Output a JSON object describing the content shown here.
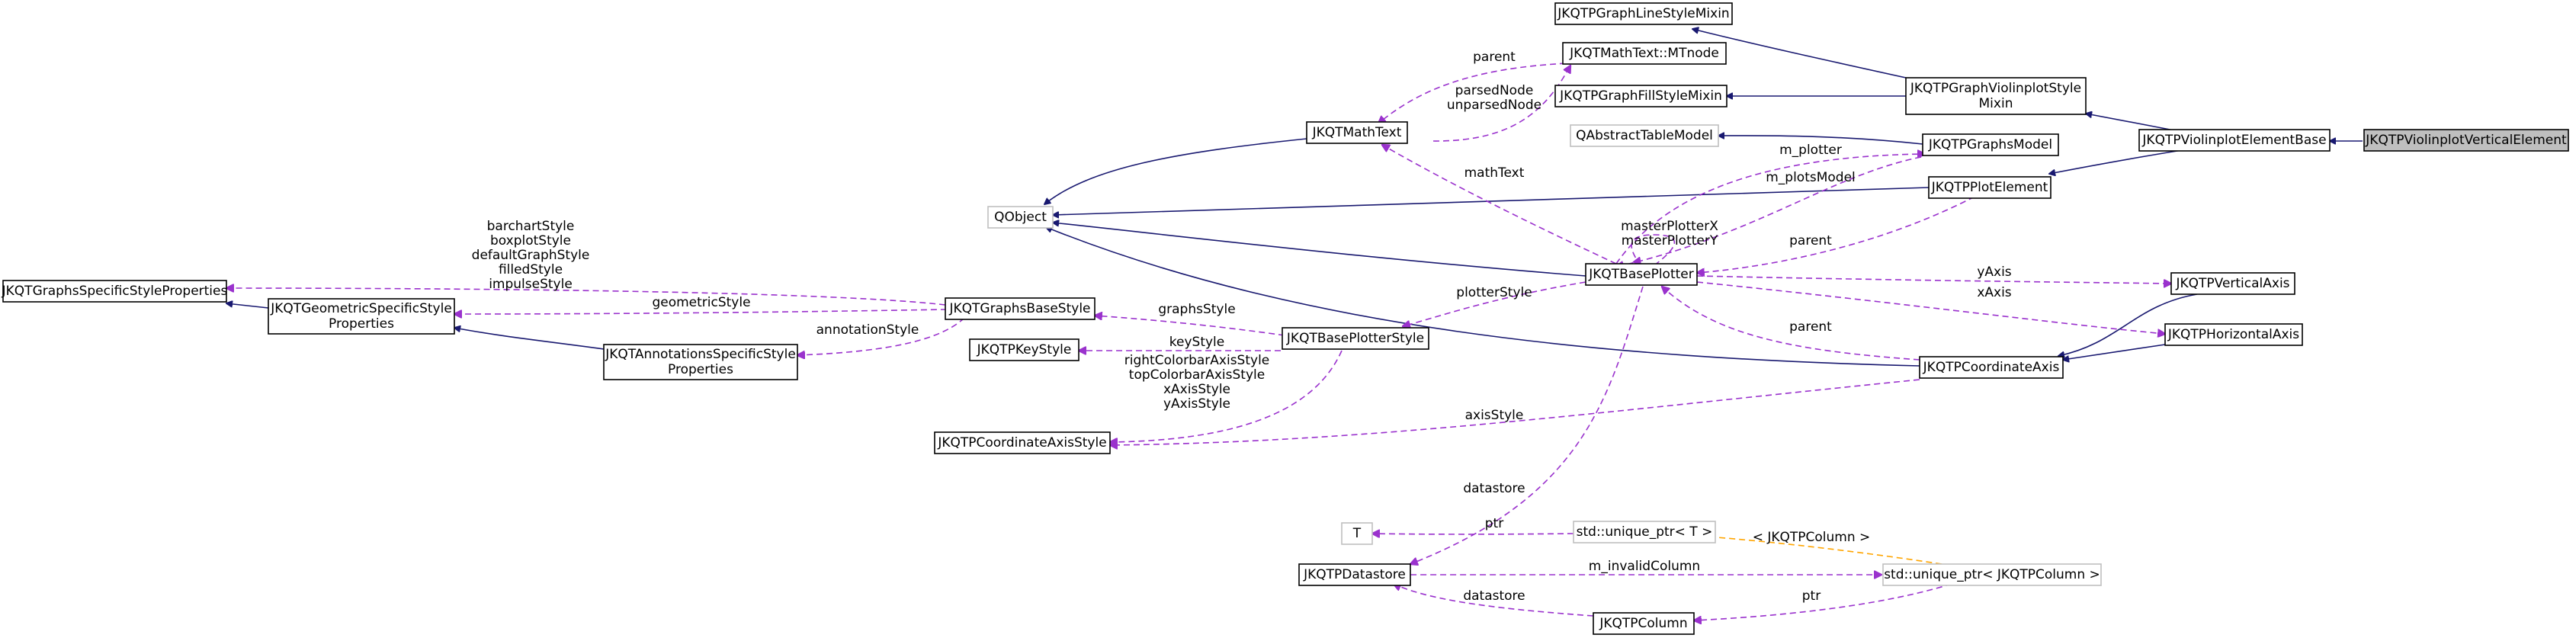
{
  "diagram": {
    "nodes": [
      {
        "id": "violin_vertical",
        "lines": [
          "JKQTPViolinplotVerticalElement"
        ],
        "style": "active"
      },
      {
        "id": "violin_base",
        "lines": [
          "JKQTPViolinplotElementBase"
        ],
        "style": "normal"
      },
      {
        "id": "violin_style_mixin",
        "lines": [
          "JKQTPGraphViolinplotStyle",
          "Mixin"
        ],
        "style": "normal"
      },
      {
        "id": "line_style_mixin",
        "lines": [
          "JKQTPGraphLineStyleMixin"
        ],
        "style": "normal"
      },
      {
        "id": "fill_style_mixin",
        "lines": [
          "JKQTPGraphFillStyleMixin"
        ],
        "style": "normal"
      },
      {
        "id": "mtnode",
        "lines": [
          "JKQTMathText::MTnode"
        ],
        "style": "normal"
      },
      {
        "id": "mathtext",
        "lines": [
          "JKQTMathText"
        ],
        "style": "normal"
      },
      {
        "id": "qabstracttablemodel",
        "lines": [
          "QAbstractTableModel"
        ],
        "style": "gray"
      },
      {
        "id": "graphsmodel",
        "lines": [
          "JKQTPGraphsModel"
        ],
        "style": "normal"
      },
      {
        "id": "plotelement",
        "lines": [
          "JKQTPPlotElement"
        ],
        "style": "normal"
      },
      {
        "id": "qobject",
        "lines": [
          "QObject"
        ],
        "style": "gray"
      },
      {
        "id": "baseplotter",
        "lines": [
          "JKQTBasePlotter"
        ],
        "style": "normal"
      },
      {
        "id": "verticalaxis",
        "lines": [
          "JKQTPVerticalAxis"
        ],
        "style": "normal"
      },
      {
        "id": "horizontalaxis",
        "lines": [
          "JKQTPHorizontalAxis"
        ],
        "style": "normal"
      },
      {
        "id": "coordinateaxis",
        "lines": [
          "JKQTPCoordinateAxis"
        ],
        "style": "normal"
      },
      {
        "id": "specificstyleprops",
        "lines": [
          "JKQTGraphsSpecificStyleProperties"
        ],
        "style": "normal"
      },
      {
        "id": "geometricstyleprops",
        "lines": [
          "JKQTGeometricSpecificStyle",
          "Properties"
        ],
        "style": "normal"
      },
      {
        "id": "annotationsstyleprops",
        "lines": [
          "JKQTAnnotationsSpecificStyle",
          "Properties"
        ],
        "style": "normal"
      },
      {
        "id": "graphsbasestyle",
        "lines": [
          "JKQTGraphsBaseStyle"
        ],
        "style": "normal"
      },
      {
        "id": "keystyle",
        "lines": [
          "JKQTPKeyStyle"
        ],
        "style": "normal"
      },
      {
        "id": "baseplotterstyle",
        "lines": [
          "JKQTBasePlotterStyle"
        ],
        "style": "normal"
      },
      {
        "id": "coordinateaxisstyle",
        "lines": [
          "JKQTPCoordinateAxisStyle"
        ],
        "style": "normal"
      },
      {
        "id": "t_param",
        "lines": [
          "T"
        ],
        "style": "gray"
      },
      {
        "id": "unique_ptr_t",
        "lines": [
          "std::unique_ptr< T >"
        ],
        "style": "gray"
      },
      {
        "id": "datastore",
        "lines": [
          "JKQTPDatastore"
        ],
        "style": "normal"
      },
      {
        "id": "unique_ptr_column",
        "lines": [
          "std::unique_ptr< JKQTPColumn >"
        ],
        "style": "gray"
      },
      {
        "id": "column",
        "lines": [
          "JKQTPColumn"
        ],
        "style": "normal"
      }
    ],
    "edge_labels": {
      "parent_mtnode": "parent",
      "parsednode": [
        "parsedNode",
        "unparsedNode"
      ],
      "mathtext": "mathText",
      "m_plotter": "m_plotter",
      "m_plotsmodel": "m_plotsModel",
      "masterplotter": [
        "masterPlotterX",
        "masterPlotterY"
      ],
      "parent_plotelement": "parent",
      "yaxis": "yAxis",
      "xaxis": "xAxis",
      "parent_axis": "parent",
      "stylelist": [
        "barchartStyle",
        "boxplotStyle",
        "defaultGraphStyle",
        "filledStyle",
        "impulseStyle"
      ],
      "geometricstyle": "geometricStyle",
      "annotationstyle": "annotationStyle",
      "graphsstyle": "graphsStyle",
      "plotterstyle": "plotterStyle",
      "keystyle": "keyStyle",
      "axisstylelist": [
        "rightColorbarAxisStyle",
        "topColorbarAxisStyle",
        "xAxisStyle",
        "yAxisStyle"
      ],
      "axisstyle": "axisStyle",
      "datastore": "datastore",
      "ptr_t": "ptr",
      "template_arg": "< JKQTPColumn >",
      "m_invalidcolumn": "m_invalidColumn",
      "datastore2": "datastore",
      "ptr_column": "ptr"
    }
  }
}
